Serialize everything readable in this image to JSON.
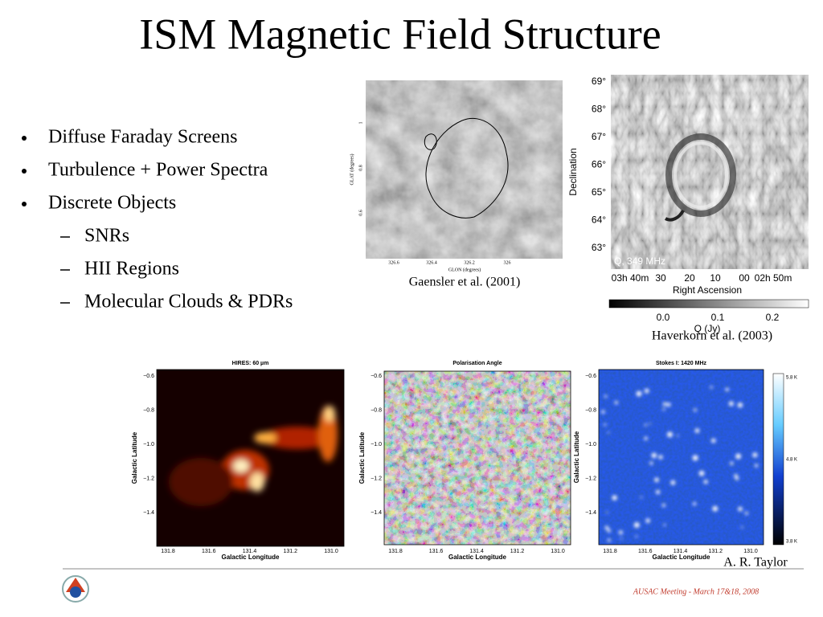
{
  "title": "ISM Magnetic Field Structure",
  "bullets": [
    "Diffuse Faraday Screens",
    "Turbulence + Power Spectra",
    "Discrete Objects"
  ],
  "sub_bullets": [
    "SNRs",
    "HII Regions",
    "Molecular Clouds & PDRs"
  ],
  "gaensler": {
    "caption": "Gaensler et al. (2001)",
    "y_label": "GLAT (degrees)",
    "x_label": "GLON (degrees)",
    "yticks": [
      "1",
      "0.8",
      "0.6"
    ],
    "xticks": [
      "326.6",
      "326.4",
      "326.2",
      "326"
    ]
  },
  "haverkorn": {
    "caption": "Haverkorn et al. (2003)",
    "label": "Q, 349 MHz",
    "y_label": "Declination",
    "x_label": "Right Ascension",
    "yticks": [
      "69°",
      "68°",
      "67°",
      "66°",
      "65°",
      "64°",
      "63°"
    ],
    "xticks": [
      "03h 40m",
      "30",
      "20",
      "10",
      "00",
      "02h 50m"
    ],
    "colorbar_ticks": [
      "0.0",
      "0.1",
      "0.2"
    ],
    "colorbar_label": "Q (Jy)"
  },
  "taylor": {
    "caption": "A. R. Taylor",
    "panels": [
      {
        "title": "HIRES: 60 µm",
        "y_label": "Galactic Latitude",
        "x_label": "Galactic Longitude",
        "yticks": [
          "−0.6",
          "−0.8",
          "−1.0",
          "−1.2",
          "−1.4"
        ],
        "xticks": [
          "131.8",
          "131.6",
          "131.4",
          "131.2",
          "131.0"
        ]
      },
      {
        "title": "Polarisation Angle",
        "y_label": "Galactic Latitude",
        "x_label": "Galactic Longitude",
        "yticks": [
          "−0.6",
          "−0.8",
          "−1.0",
          "−1.2",
          "−1.4"
        ],
        "xticks": [
          "131.8",
          "131.6",
          "131.4",
          "131.2",
          "131.0"
        ]
      },
      {
        "title": "Stokes I: 1420 MHz",
        "y_label": "Galactic Latitude",
        "x_label": "Galactic Longitude",
        "yticks": [
          "−0.6",
          "−0.8",
          "−1.0",
          "−1.2",
          "−1.4"
        ],
        "xticks": [
          "131.8",
          "131.6",
          "131.4",
          "131.2",
          "131.0"
        ]
      }
    ],
    "colorbar_ticks": [
      "5.8 K",
      "4.8 K",
      "3.8 K"
    ]
  },
  "footer": "AUSAC Meeting - March 17&18, 2008"
}
